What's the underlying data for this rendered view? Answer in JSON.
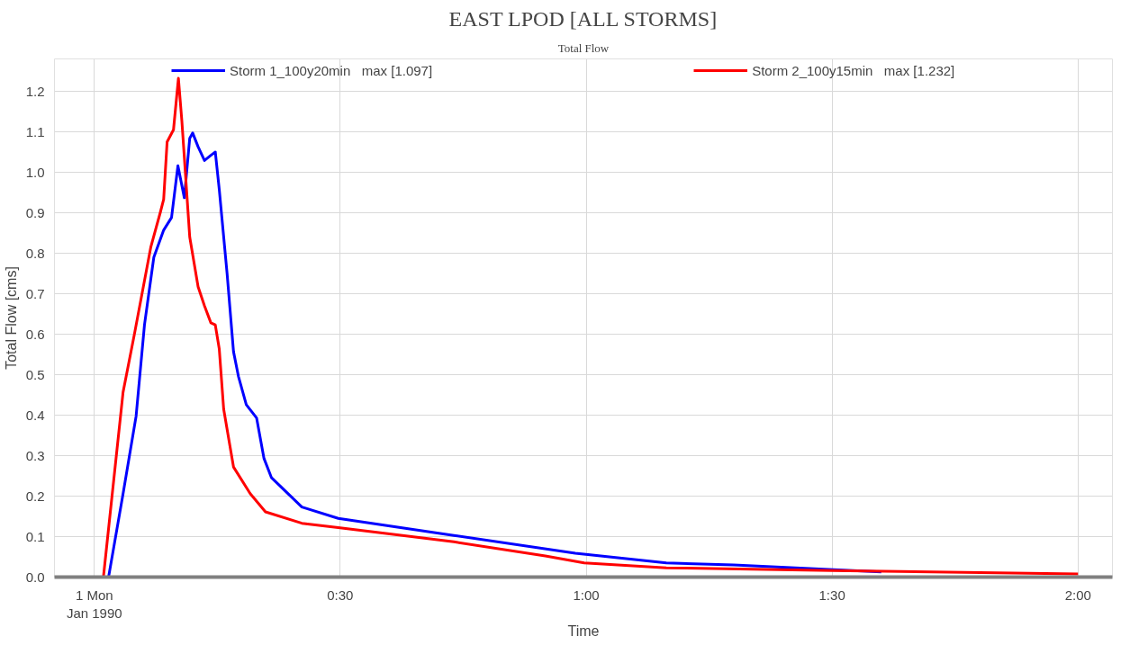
{
  "chart_data": {
    "type": "line",
    "title": "EAST LPOD [ALL STORMS]",
    "subtitle": "Total Flow",
    "xlabel": "Time",
    "ylabel": "Total Flow [cms]",
    "xlim": [
      -0.081,
      2.07
    ],
    "ylim": [
      0,
      1.28
    ],
    "xticks": [
      {
        "value": 0,
        "label": "1 Mon\nJan 1990"
      },
      {
        "value": 0.5,
        "label": "0:30"
      },
      {
        "value": 1,
        "label": "1:00"
      },
      {
        "value": 1.5,
        "label": "1:30"
      },
      {
        "value": 2,
        "label": "2:00"
      }
    ],
    "yticks": [
      {
        "value": 0,
        "label": "0.0"
      },
      0.1,
      0.2,
      0.3,
      0.4,
      0.5,
      0.6,
      0.7,
      0.8,
      0.9,
      {
        "value": 1,
        "label": "1.0"
      },
      1.1,
      1.2
    ],
    "grid": true,
    "legend": "top",
    "line_style": "solid",
    "marker": "none",
    "series": [
      {
        "name": "Storm 1_100y20min   max [1.097]",
        "color": "#0000ff",
        "x": [
          0.0,
          0.029,
          0.0585,
          0.085,
          0.102,
          0.121,
          0.141,
          0.157,
          0.17,
          0.183,
          0.194,
          0.2,
          0.211,
          0.224,
          0.237,
          0.246,
          0.254,
          0.27,
          0.283,
          0.293,
          0.309,
          0.33,
          0.345,
          0.36,
          0.422,
          0.496,
          0.731,
          0.978,
          1.163,
          1.3,
          1.6
        ],
        "values": [
          0,
          0,
          0.206,
          0.398,
          0.623,
          0.79,
          0.857,
          0.888,
          1.016,
          0.937,
          1.084,
          1.097,
          1.063,
          1.029,
          1.042,
          1.05,
          0.958,
          0.749,
          0.557,
          0.496,
          0.426,
          0.393,
          0.293,
          0.246,
          0.173,
          0.145,
          0.103,
          0.059,
          0.035,
          0.03,
          0.013
        ]
      },
      {
        "name": "Storm 2_100y15min   max [1.232]",
        "color": "#ff0000",
        "x": [
          0.0,
          0.0185,
          0.0585,
          0.0815,
          0.115,
          0.134,
          0.141,
          0.148,
          0.161,
          0.171,
          0.178,
          0.194,
          0.211,
          0.224,
          0.237,
          0.246,
          0.254,
          0.263,
          0.283,
          0.317,
          0.348,
          0.422,
          0.496,
          0.731,
          0.917,
          0.996,
          1.163,
          1.5,
          2.0
        ],
        "values": [
          0,
          0,
          0.457,
          0.6,
          0.816,
          0.9,
          0.933,
          1.075,
          1.105,
          1.232,
          1.127,
          0.84,
          0.717,
          0.67,
          0.628,
          0.623,
          0.564,
          0.415,
          0.272,
          0.206,
          0.161,
          0.133,
          0.122,
          0.087,
          0.052,
          0.035,
          0.023,
          0.016,
          0.008
        ]
      }
    ]
  }
}
